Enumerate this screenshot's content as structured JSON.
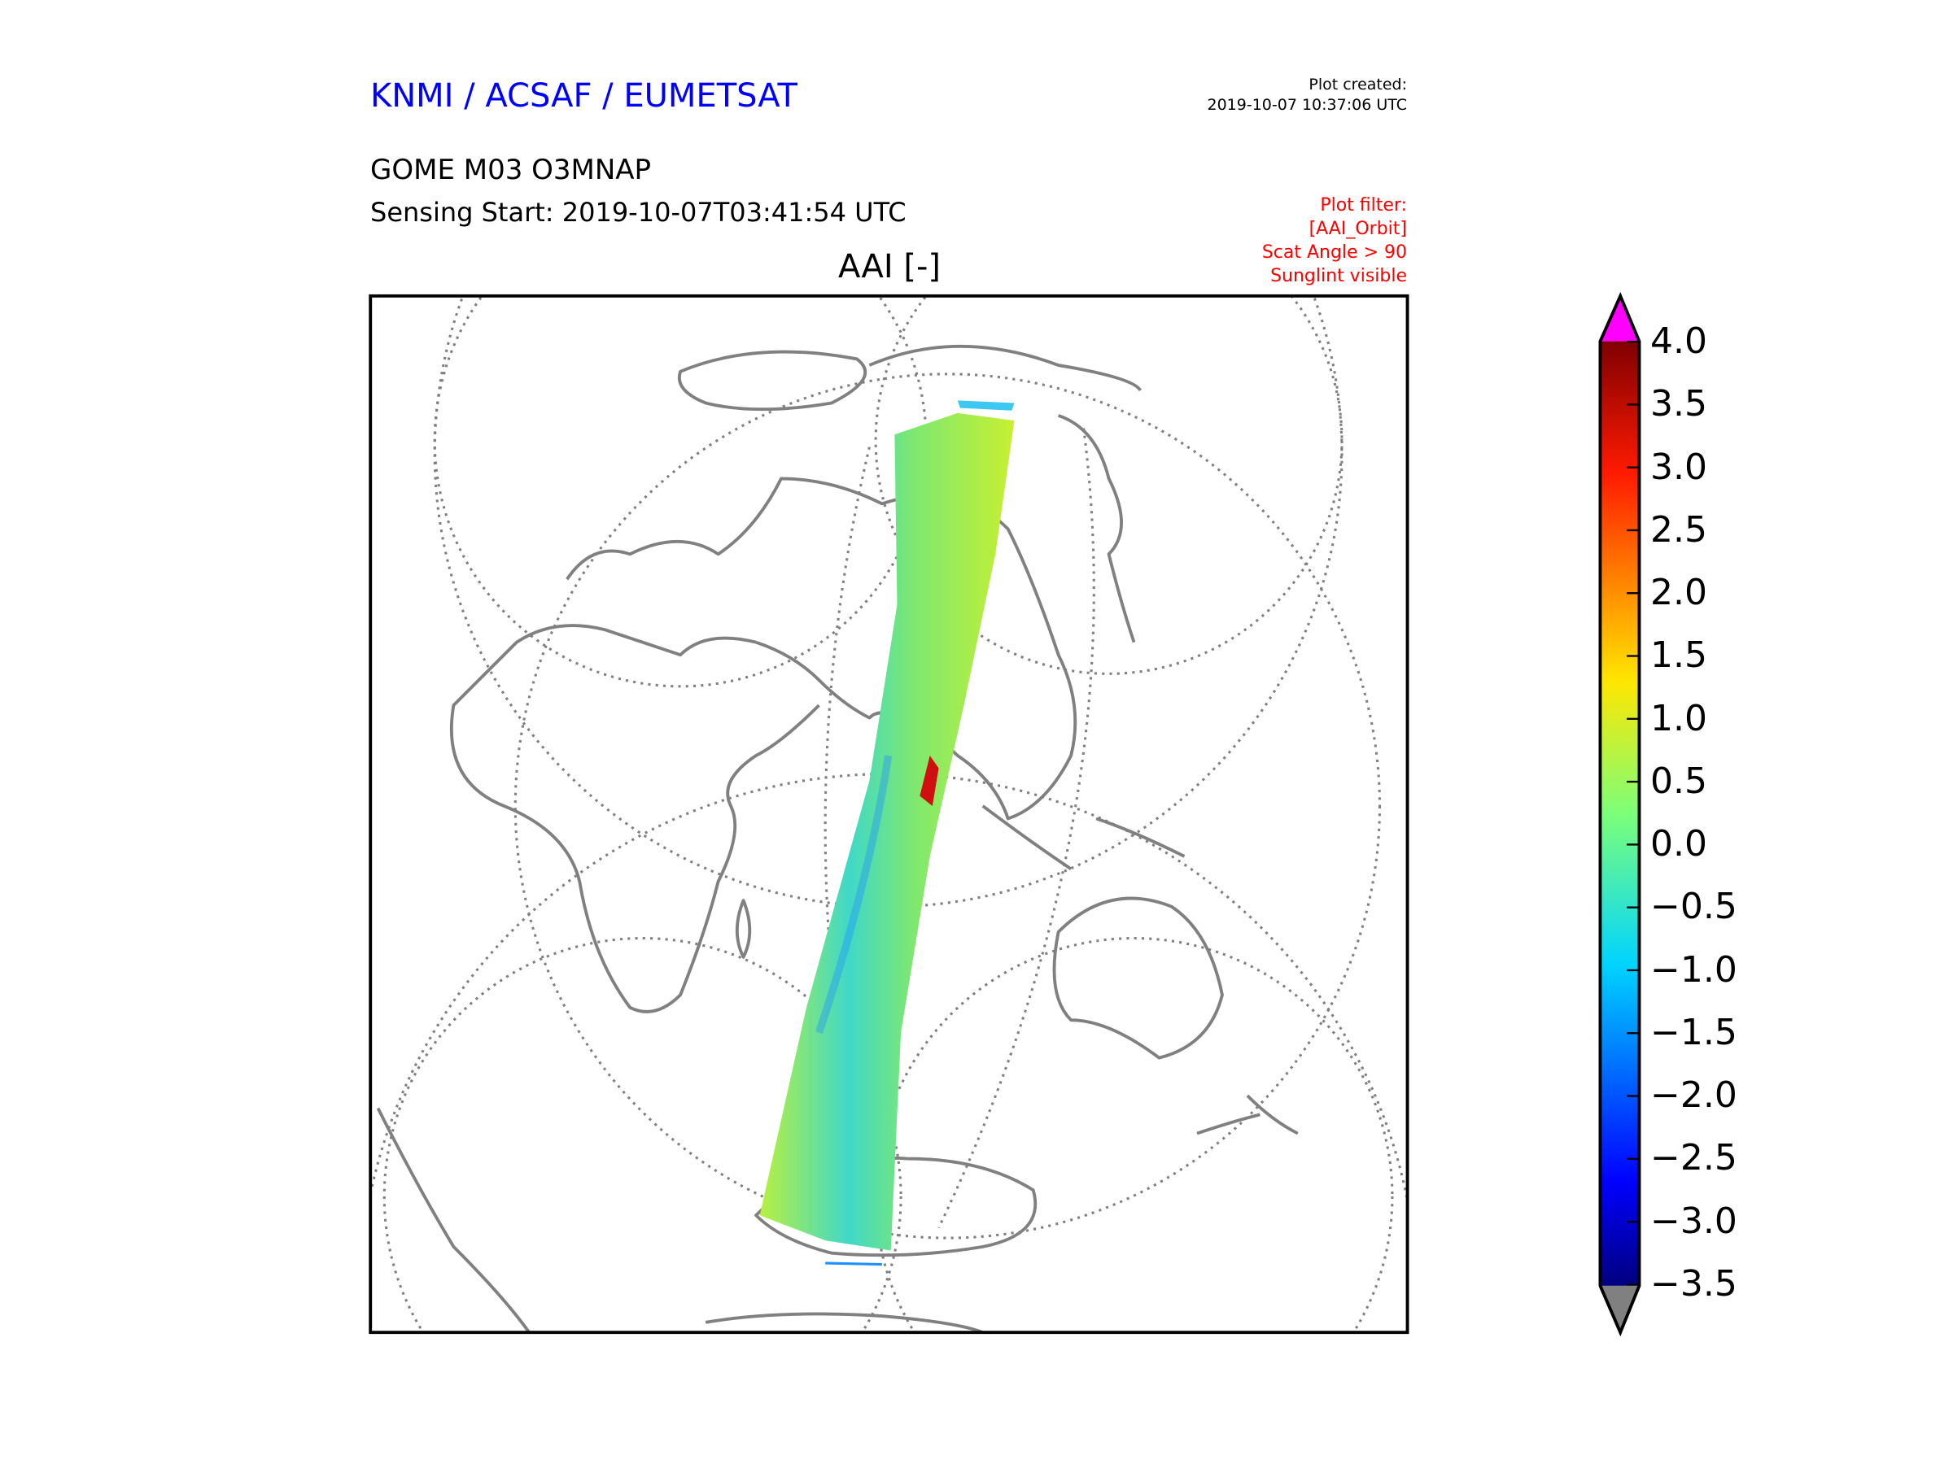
{
  "header": {
    "organization": "KNMI / ACSAF / EUMETSAT",
    "created_label": "Plot created:",
    "created_time": "2019-10-07 10:37:06 UTC",
    "product": "GOME M03 O3MNAP",
    "sensing_start": "Sensing Start: 2019-10-07T03:41:54 UTC",
    "filter_lines": [
      "Plot filter:",
      "[AAI_Orbit]",
      "Scat Angle > 90",
      "Sunglint visible"
    ]
  },
  "plot": {
    "title": "AAI [-]"
  },
  "colorbar": {
    "ticks": [
      "4.0",
      "3.5",
      "3.0",
      "2.5",
      "2.0",
      "1.5",
      "1.0",
      "0.5",
      "0.0",
      "−0.5",
      "−1.0",
      "−1.5",
      "−2.0",
      "−2.5",
      "−3.0",
      "−3.5"
    ],
    "range": [
      -3.5,
      4.0
    ],
    "over_color": "#ff00ff",
    "under_color": "#808080",
    "colormap": "jet"
  },
  "colors": {
    "title_blue": "#0000ff",
    "filter_red": "#ff0000",
    "coast": "#808080"
  }
}
